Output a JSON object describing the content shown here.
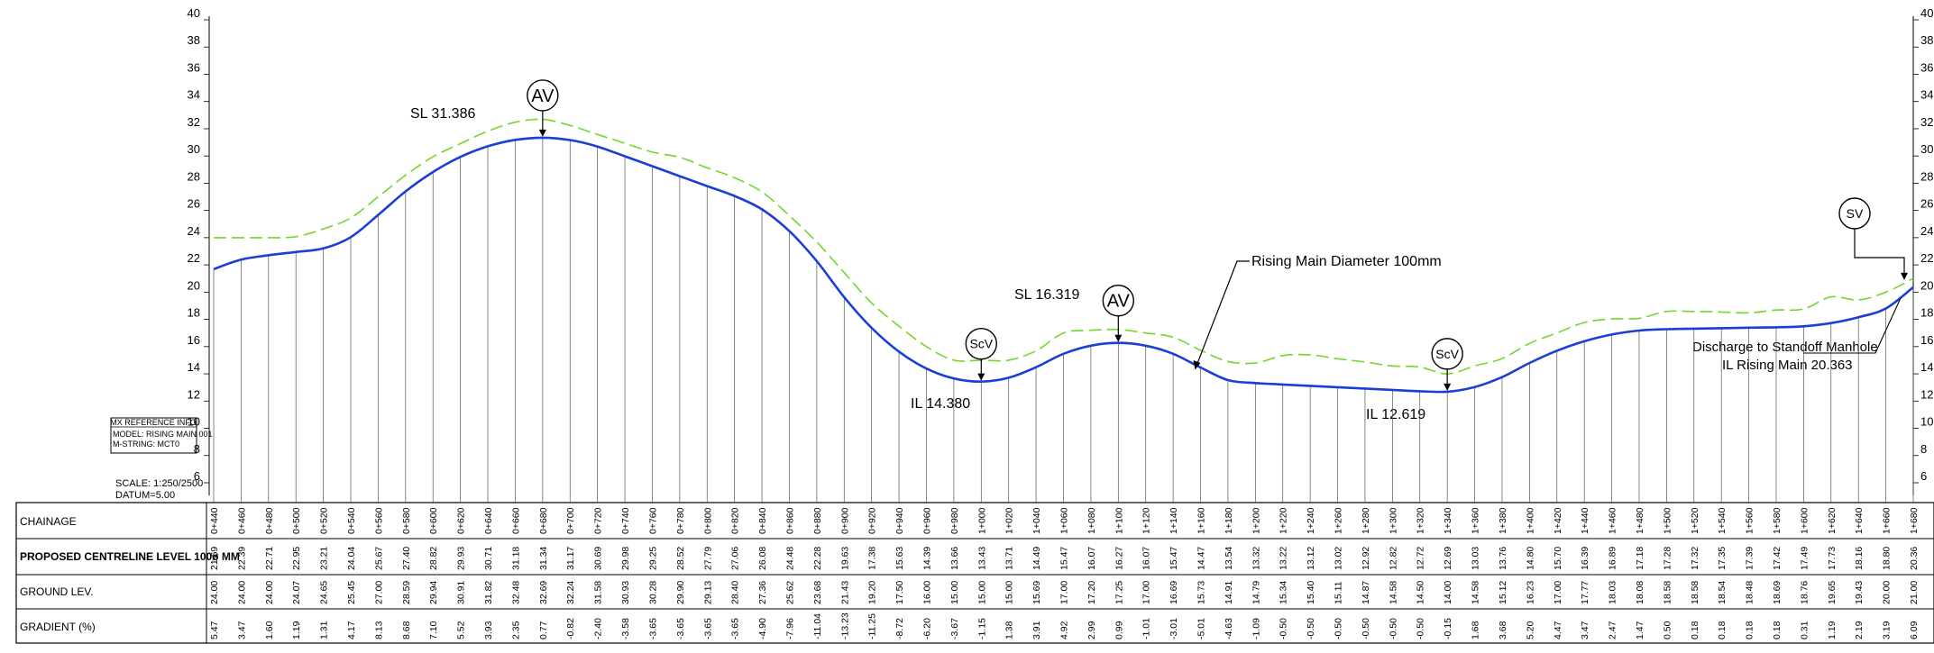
{
  "axis": {
    "ticks": [
      "6",
      "8",
      "10",
      "12",
      "14",
      "16",
      "18",
      "20",
      "22",
      "24",
      "26",
      "28",
      "30",
      "32",
      "34",
      "36",
      "38",
      "40"
    ],
    "min": 6,
    "max": 40,
    "step": 2
  },
  "info_box": {
    "title": "MX REFERENCE INFO",
    "model": "MODEL: RISING MAIN 001",
    "string": "M-STRING: MCT0"
  },
  "scale_note": {
    "scale": "SCALE:  1:250/2500",
    "datum": "DATUM=5.00"
  },
  "annotations": {
    "sl_left": "SL 31.386",
    "sl_mid": "SL 16.319",
    "il_left": "IL 14.380",
    "il_right": "IL 12.619",
    "rising_main": "Rising Main Diameter 100mm",
    "discharge_line1": "Discharge to Standoff Manhole",
    "discharge_line2": "IL Rising Main 20.363"
  },
  "symbols": {
    "av": "AV",
    "scv": "ScV",
    "sv": "SV"
  },
  "table_labels": {
    "chainage": "CHAINAGE",
    "proposed": "PROPOSED CENTRELINE LEVEL 100ø MM",
    "ground": "GROUND LEV.",
    "gradient": "GRADIENT (%)"
  },
  "colors": {
    "pipe": "#1a3fd6",
    "ground": "#6fd82a",
    "lines": "#000000"
  },
  "chart_data": {
    "type": "line",
    "x": [
      "0+440",
      "0+460",
      "0+480",
      "0+500",
      "0+520",
      "0+540",
      "0+560",
      "0+580",
      "0+600",
      "0+620",
      "0+640",
      "0+660",
      "0+680",
      "0+700",
      "0+720",
      "0+740",
      "0+760",
      "0+780",
      "0+800",
      "0+820",
      "0+840",
      "0+860",
      "0+880",
      "0+900",
      "0+920",
      "0+940",
      "0+960",
      "0+980",
      "1+000",
      "1+020",
      "1+040",
      "1+060",
      "1+080",
      "1+100",
      "1+120",
      "1+140",
      "1+160",
      "1+180",
      "1+200",
      "1+220",
      "1+240",
      "1+260",
      "1+280",
      "1+300",
      "1+320",
      "1+340",
      "1+360",
      "1+380",
      "1+400",
      "1+420",
      "1+440",
      "1+460",
      "1+480",
      "1+500",
      "1+520",
      "1+540",
      "1+560",
      "1+580",
      "1+600",
      "1+620",
      "1+640",
      "1+660",
      "1+680"
    ],
    "ylim": [
      6,
      40
    ],
    "series": [
      {
        "name": "PROPOSED CENTRELINE LEVEL 100ø MM",
        "values": [
          "21.69",
          "22.39",
          "22.71",
          "22.95",
          "23.21",
          "24.04",
          "25.67",
          "27.40",
          "28.82",
          "29.93",
          "30.71",
          "31.18",
          "31.34",
          "31.17",
          "30.69",
          "29.98",
          "29.25",
          "28.52",
          "27.79",
          "27.06",
          "26.08",
          "24.48",
          "22.28",
          "19.63",
          "17.38",
          "15.63",
          "14.39",
          "13.66",
          "13.43",
          "13.71",
          "14.49",
          "15.47",
          "16.07",
          "16.27",
          "16.07",
          "15.47",
          "14.47",
          "13.54",
          "13.32",
          "13.22",
          "13.12",
          "13.02",
          "12.92",
          "12.82",
          "12.72",
          "12.69",
          "13.03",
          "13.76",
          "14.80",
          "15.70",
          "16.39",
          "16.89",
          "17.18",
          "17.28",
          "17.32",
          "17.35",
          "17.39",
          "17.42",
          "17.49",
          "17.73",
          "18.16",
          "18.80",
          "20.36"
        ]
      },
      {
        "name": "GROUND LEV.",
        "values": [
          "24.00",
          "24.00",
          "24.00",
          "24.07",
          "24.65",
          "25.45",
          "27.00",
          "28.59",
          "29.94",
          "30.91",
          "31.82",
          "32.48",
          "32.69",
          "32.24",
          "31.58",
          "30.93",
          "30.28",
          "29.90",
          "29.13",
          "28.40",
          "27.36",
          "25.62",
          "23.68",
          "21.43",
          "19.20",
          "17.50",
          "16.00",
          "15.00",
          "15.00",
          "15.00",
          "15.69",
          "17.00",
          "17.20",
          "17.25",
          "17.00",
          "16.69",
          "15.73",
          "14.91",
          "14.79",
          "15.34",
          "15.40",
          "15.11",
          "14.87",
          "14.58",
          "14.50",
          "14.00",
          "14.58",
          "15.12",
          "16.23",
          "17.00",
          "17.77",
          "18.03",
          "18.08",
          "18.58",
          "18.58",
          "18.54",
          "18.48",
          "18.69",
          "18.76",
          "19.65",
          "19.43",
          "20.00",
          "21.00"
        ]
      }
    ],
    "gradient": [
      "5.47",
      "3.47",
      "1.60",
      "1.19",
      "1.31",
      "4.17",
      "8.13",
      "8.68",
      "7.10",
      "5.52",
      "3.93",
      "2.35",
      "0.77",
      "-0.82",
      "-2.40",
      "-3.58",
      "-3.65",
      "-3.65",
      "-3.65",
      "-3.65",
      "-4.90",
      "-7.96",
      "-11.04",
      "-13.23",
      "-11.25",
      "-8.72",
      "-6.20",
      "-3.67",
      "-1.15",
      "1.38",
      "3.91",
      "4.92",
      "2.99",
      "0.99",
      "-1.01",
      "-3.01",
      "-5.01",
      "-4.63",
      "-1.09",
      "-0.50",
      "-0.50",
      "-0.50",
      "-0.50",
      "-0.50",
      "-0.50",
      "-0.15",
      "1.68",
      "3.68",
      "5.20",
      "4.47",
      "3.47",
      "2.47",
      "1.47",
      "0.50",
      "0.18",
      "0.18",
      "0.18",
      "0.18",
      "0.31",
      "1.19",
      "2.19",
      "3.19",
      "6.09"
    ]
  }
}
